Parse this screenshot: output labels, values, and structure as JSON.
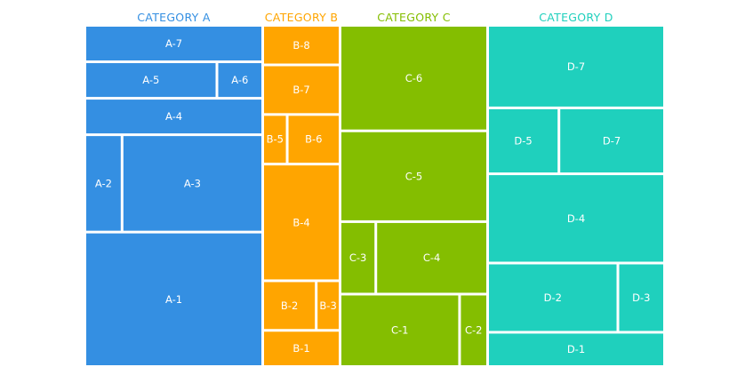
{
  "chart_data": {
    "type": "treemap",
    "title": "",
    "categories": [
      {
        "name": "CATEGORY A",
        "color": "#348FE2",
        "rows": [
          {
            "weight": 1.0,
            "cells": [
              {
                "label": "A-7",
                "weight": 1
              }
            ]
          },
          {
            "weight": 1.0,
            "cells": [
              {
                "label": "A-5",
                "weight": 3
              },
              {
                "label": "A-6",
                "weight": 1
              }
            ]
          },
          {
            "weight": 1.0,
            "cells": [
              {
                "label": "A-4",
                "weight": 1
              }
            ]
          },
          {
            "weight": 2.8,
            "cells": [
              {
                "label": "A-2",
                "weight": 1
              },
              {
                "label": "A-3",
                "weight": 4
              }
            ]
          },
          {
            "weight": 3.9,
            "cells": [
              {
                "label": "A-1",
                "weight": 1
              }
            ]
          }
        ]
      },
      {
        "name": "CATEGORY B",
        "color": "#FFA500",
        "rows": [
          {
            "weight": 1.1,
            "cells": [
              {
                "label": "B-8",
                "weight": 1
              }
            ]
          },
          {
            "weight": 1.4,
            "cells": [
              {
                "label": "B-7",
                "weight": 1
              }
            ]
          },
          {
            "weight": 1.4,
            "cells": [
              {
                "label": "B-5",
                "weight": 1
              },
              {
                "label": "B-6",
                "weight": 2.3
              }
            ]
          },
          {
            "weight": 3.4,
            "cells": [
              {
                "label": "B-4",
                "weight": 1
              }
            ]
          },
          {
            "weight": 1.4,
            "cells": [
              {
                "label": "B-2",
                "weight": 2.4
              },
              {
                "label": "B-3",
                "weight": 1
              }
            ]
          },
          {
            "weight": 1.0,
            "cells": [
              {
                "label": "B-1",
                "weight": 1
              }
            ]
          }
        ]
      },
      {
        "name": "CATEGORY C",
        "color": "#84BE00",
        "rows": [
          {
            "weight": 2.8,
            "cells": [
              {
                "label": "C-6",
                "weight": 1
              }
            ]
          },
          {
            "weight": 2.4,
            "cells": [
              {
                "label": "C-5",
                "weight": 1
              }
            ]
          },
          {
            "weight": 1.9,
            "cells": [
              {
                "label": "C-3",
                "weight": 1
              },
              {
                "label": "C-4",
                "weight": 3.3
              }
            ]
          },
          {
            "weight": 1.9,
            "cells": [
              {
                "label": "C-1",
                "weight": 4.6
              },
              {
                "label": "C-2",
                "weight": 1
              }
            ]
          }
        ]
      },
      {
        "name": "CATEGORY D",
        "color": "#1FD0BD",
        "rows": [
          {
            "weight": 2.4,
            "cells": [
              {
                "label": "D-7",
                "weight": 1
              }
            ]
          },
          {
            "weight": 1.9,
            "cells": [
              {
                "label": "D-5",
                "weight": 1
              },
              {
                "label": "D-7",
                "weight": 1.5
              }
            ]
          },
          {
            "weight": 2.6,
            "cells": [
              {
                "label": "D-4",
                "weight": 1
              }
            ]
          },
          {
            "weight": 2.0,
            "cells": [
              {
                "label": "D-2",
                "weight": 2.9
              },
              {
                "label": "D-3",
                "weight": 1
              }
            ]
          },
          {
            "weight": 0.95,
            "cells": [
              {
                "label": "D-1",
                "weight": 1
              }
            ]
          }
        ]
      }
    ]
  }
}
